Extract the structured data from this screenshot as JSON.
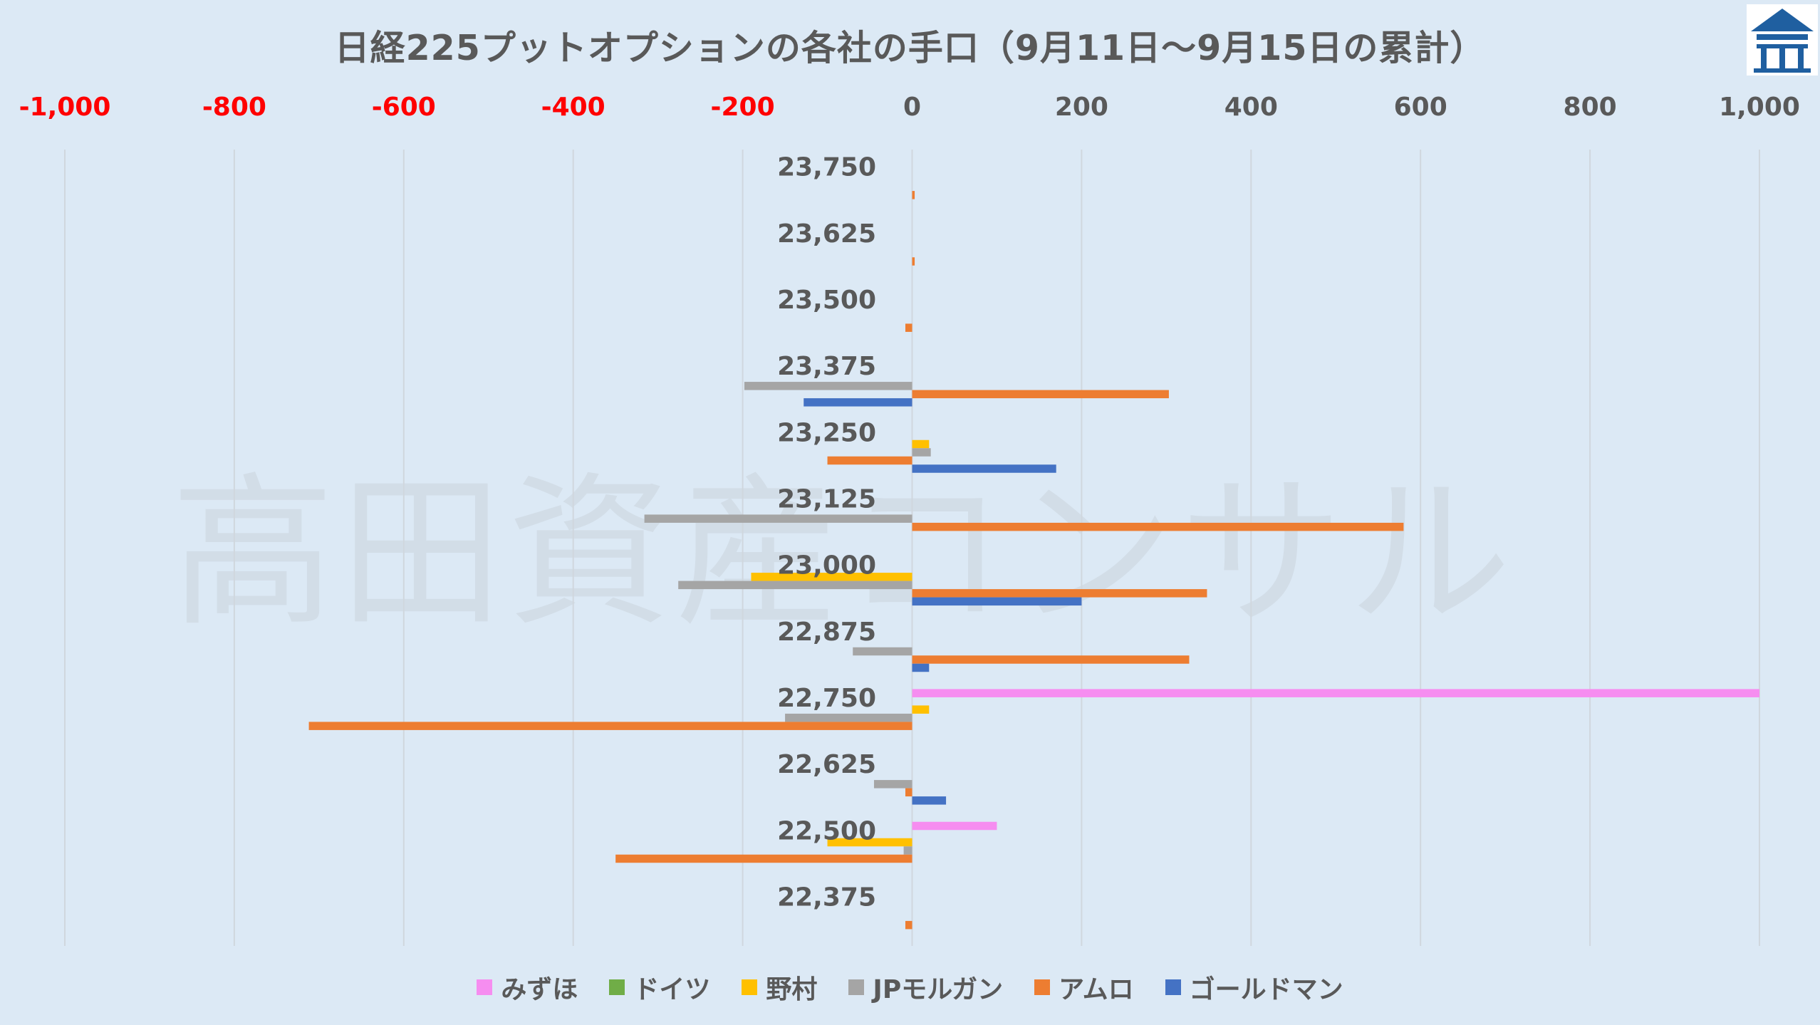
{
  "chart_data": {
    "type": "bar",
    "orientation": "horizontal",
    "title": "日経225プットオプションの各社の手口（9月11日～9月15日の累計）",
    "xlim": [
      -1000,
      1000
    ],
    "x_ticks": [
      -1000,
      -800,
      -600,
      -400,
      -200,
      0,
      200,
      400,
      600,
      800,
      1000
    ],
    "x_tick_labels": [
      "-1,000",
      "-800",
      "-600",
      "-400",
      "-200",
      "0",
      "200",
      "400",
      "600",
      "800",
      "1,000"
    ],
    "negative_tick_color": "#ff0000",
    "positive_tick_color": "#595959",
    "grid": true,
    "legend_position": "bottom",
    "categories": [
      "23,750",
      "23,625",
      "23,500",
      "23,375",
      "23,250",
      "23,125",
      "23,000",
      "22,875",
      "22,750",
      "22,625",
      "22,500",
      "22,375"
    ],
    "series": [
      {
        "name": "みずほ",
        "color": "#f68df0",
        "values": [
          0,
          0,
          0,
          0,
          0,
          0,
          0,
          0,
          1000,
          0,
          100,
          0
        ]
      },
      {
        "name": "ドイツ",
        "color": "#70ad47",
        "values": [
          0,
          0,
          0,
          0,
          0,
          0,
          0,
          0,
          0,
          0,
          0,
          0
        ]
      },
      {
        "name": "野村",
        "color": "#ffc000",
        "values": [
          0,
          0,
          0,
          0,
          20,
          0,
          -190,
          0,
          20,
          0,
          -100,
          0
        ]
      },
      {
        "name": "JPモルガン",
        "color": "#a5a5a5",
        "values": [
          0,
          0,
          0,
          -198,
          22,
          -316,
          -276,
          -70,
          -150,
          -45,
          -10,
          0
        ]
      },
      {
        "name": "アムロ",
        "color": "#ed7d31",
        "values": [
          3,
          3,
          -8,
          303,
          -100,
          580,
          348,
          327,
          -712,
          -8,
          -350,
          -8
        ]
      },
      {
        "name": "ゴールドマン",
        "color": "#4472c4",
        "values": [
          0,
          0,
          0,
          -128,
          170,
          0,
          200,
          20,
          0,
          40,
          0,
          0
        ]
      }
    ]
  },
  "watermark": "高田資産コンサル",
  "colors": {
    "background": "#dce9f5",
    "grid": "#d0d7de",
    "text": "#595959"
  }
}
